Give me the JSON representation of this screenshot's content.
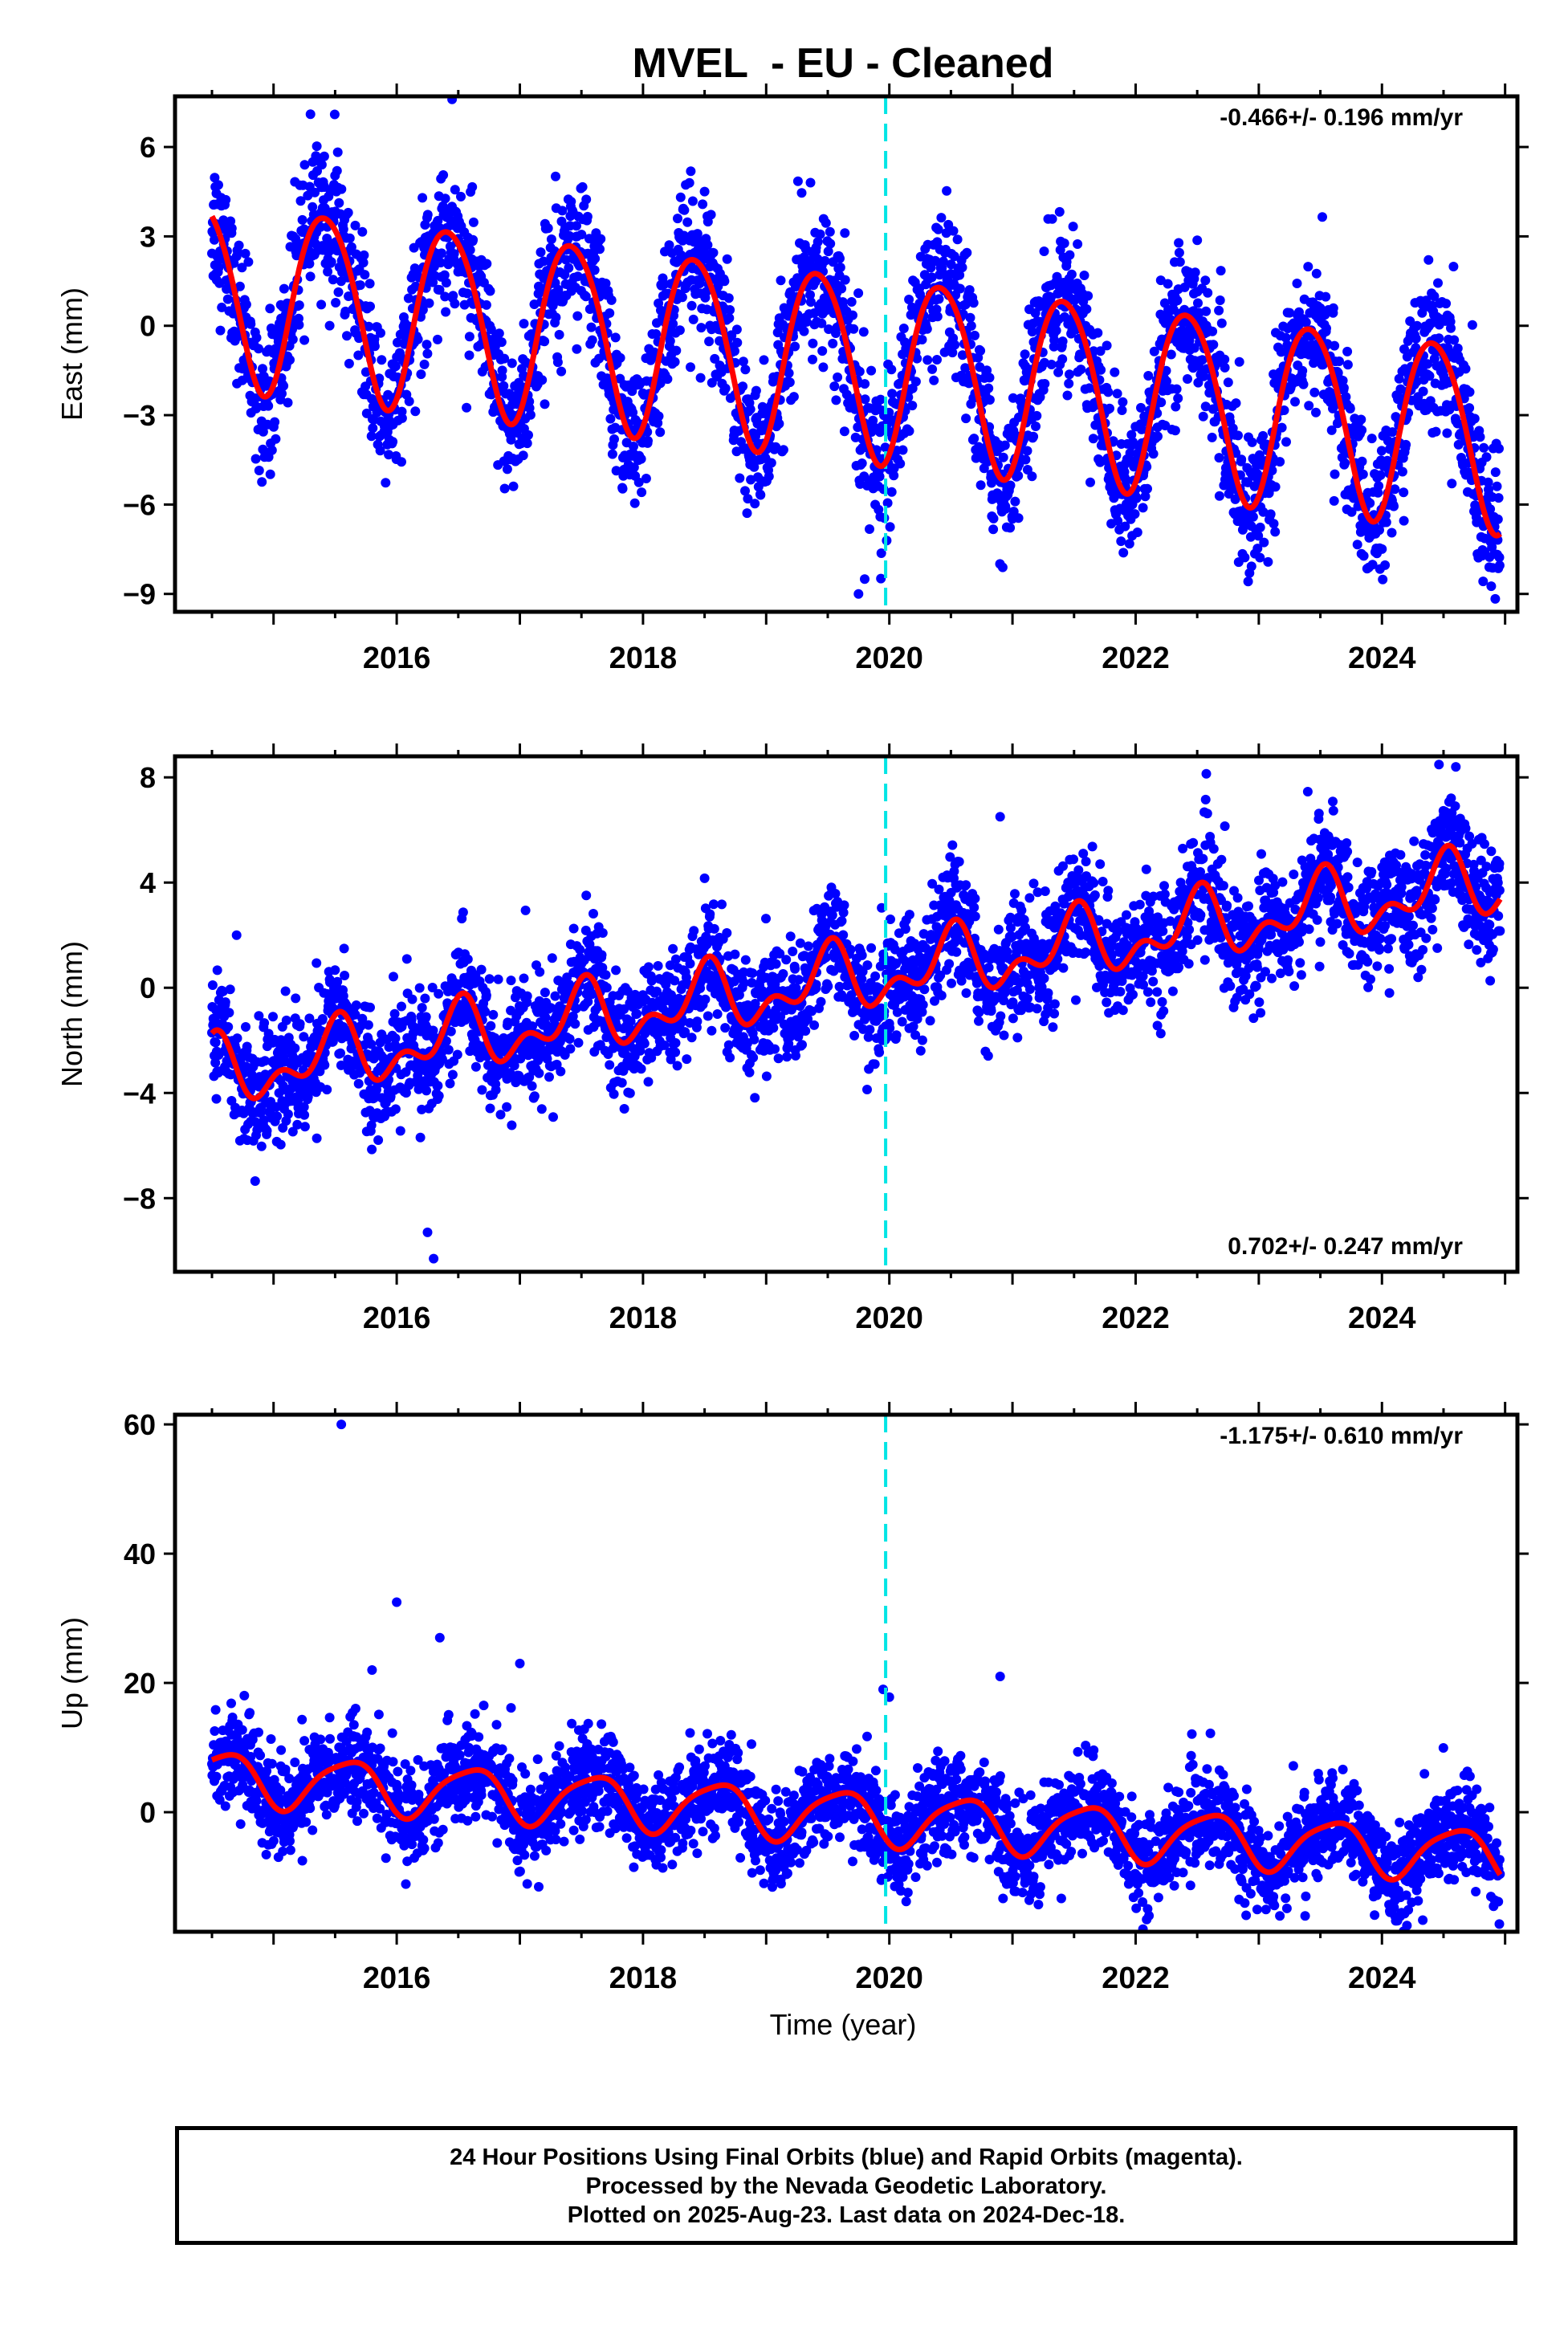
{
  "chart_data": {
    "type": "scatter",
    "title": "MVEL  - EU - Cleaned",
    "xlabel": "Time (year)",
    "x_ticks": [
      2016,
      2018,
      2020,
      2022,
      2024
    ],
    "xlim": [
      2014.2,
      2025.1
    ],
    "reference_line_x": 2019.97,
    "colors": {
      "points": "#0000ff",
      "model": "#ff0000",
      "reference": "#00e5e5"
    },
    "panels": [
      {
        "name": "east",
        "ylabel": "East (mm)",
        "ylim": [
          -9.6,
          7.7
        ],
        "y_ticks": [
          6,
          3,
          0,
          -3,
          -6,
          -9
        ],
        "rate": "-0.466+/- 0.196 mm/yr",
        "rate_position": "top-right",
        "model": {
          "trend_start": 1.2,
          "slope": -0.466,
          "annual_amp": 3.1,
          "annual_peak": 0.42,
          "semi_amp": 0.3,
          "semi_peak": 0.2
        },
        "scatter": {
          "sigma": 1.2,
          "outliers": [
            [
              2019.75,
              -9.0
            ],
            [
              2019.8,
              -8.5
            ],
            [
              2015.3,
              7.1
            ],
            [
              2016.45,
              7.6
            ]
          ]
        }
      },
      {
        "name": "north",
        "ylabel": "North (mm)",
        "ylim": [
          -10.8,
          8.8
        ],
        "y_ticks": [
          8,
          4,
          0,
          -4,
          -8
        ],
        "rate": "0.702+/- 0.247 mm/yr",
        "rate_position": "bottom-right",
        "model": {
          "trend_start": -3.3,
          "slope": 0.702,
          "annual_amp": 1.0,
          "annual_peak": 0.5,
          "semi_amp": 0.7,
          "semi_peak": 0.05
        },
        "scatter": {
          "sigma": 1.1,
          "outliers": [
            [
              2020.9,
              6.5
            ],
            [
              2024.6,
              8.4
            ],
            [
              2016.3,
              -10.3
            ],
            [
              2016.25,
              -9.3
            ],
            [
              2014.7,
              2.0
            ]
          ]
        }
      },
      {
        "name": "up",
        "ylabel": "Up (mm)",
        "ylim": [
          -18.5,
          61.5
        ],
        "y_ticks": [
          60,
          40,
          20,
          0
        ],
        "rate": "-1.175+/- 0.610 mm/yr",
        "rate_position": "top-right",
        "model": {
          "trend_start": 5.5,
          "slope": -1.175,
          "annual_amp": 4.0,
          "annual_peak": 0.6,
          "semi_amp": 0.8,
          "semi_peak": 0.3
        },
        "scatter": {
          "sigma": 3.6,
          "outliers": [
            [
              2015.55,
              60.0
            ],
            [
              2016.0,
              32.5
            ],
            [
              2016.35,
              27.0
            ],
            [
              2017.0,
              23.0
            ],
            [
              2019.95,
              19.0
            ],
            [
              2020.0,
              17.8
            ],
            [
              2020.9,
              21.0
            ],
            [
              2015.8,
              22.0
            ]
          ]
        }
      }
    ]
  },
  "footer": {
    "line1": "24 Hour Positions Using Final Orbits (blue) and Rapid Orbits (magenta).",
    "line2": "Processed by the Nevada Geodetic Laboratory.",
    "line3": "Plotted on 2025-Aug-23. Last data on 2024-Dec-18."
  }
}
